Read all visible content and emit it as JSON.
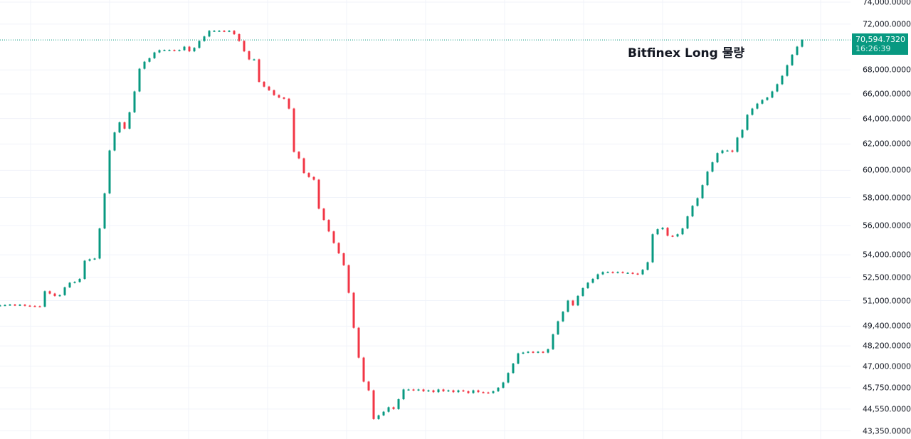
{
  "chart_data": {
    "type": "candlestick",
    "title": "",
    "annotation": "Bitfinex Long 물량",
    "y_scale": "log",
    "ylim": [
      43100,
      74300
    ],
    "grid": true,
    "y_ticks": [
      "74,000.0000",
      "72,000.0000",
      "68,000.0000",
      "66,000.0000",
      "64,000.0000",
      "62,000.0000",
      "60,000.0000",
      "58,000.0000",
      "56,000.0000",
      "54,000.0000",
      "52,500.0000",
      "51,000.0000",
      "49,400.0000",
      "48,200.0000",
      "47,000.0000",
      "45,750.0000",
      "44,550.0000",
      "43,350.0000"
    ],
    "last_price": "70,594.7320",
    "last_time": "16:26:39",
    "colors": {
      "up": "#089981",
      "down": "#f23645",
      "grid": "#f0f3fa",
      "price_line": "#089981"
    },
    "closes": [
      50700,
      50720,
      50750,
      50700,
      50740,
      50680,
      50660,
      50640,
      50620,
      51600,
      51450,
      51300,
      51350,
      51850,
      52150,
      52200,
      52400,
      53600,
      53700,
      53750,
      55800,
      58300,
      61500,
      62900,
      63700,
      63200,
      64500,
      66200,
      68100,
      68700,
      69000,
      69500,
      69700,
      69700,
      69700,
      69650,
      69700,
      70000,
      69600,
      69900,
      70500,
      70900,
      71400,
      71400,
      71400,
      71350,
      71400,
      71100,
      70500,
      69600,
      68900,
      68900,
      67000,
      66600,
      66300,
      65900,
      65700,
      65600,
      64800,
      61400,
      60900,
      59800,
      59500,
      59300,
      57200,
      56400,
      55600,
      54800,
      54100,
      53300,
      51500,
      49300,
      47500,
      46100,
      45600,
      44000,
      44200,
      44400,
      44650,
      44550,
      45100,
      45650,
      45650,
      45600,
      45650,
      45550,
      45600,
      45500,
      45650,
      45550,
      45600,
      45500,
      45600,
      45550,
      45450,
      45600,
      45500,
      45480,
      45450,
      45550,
      45750,
      46050,
      46600,
      47150,
      47750,
      47800,
      47850,
      47800,
      47850,
      47800,
      48000,
      48900,
      49700,
      50300,
      51000,
      50700,
      51300,
      51800,
      52150,
      52400,
      52700,
      52850,
      52850,
      52800,
      52850,
      52800,
      52800,
      52750,
      52700,
      53000,
      53500,
      55400,
      55750,
      55850,
      55300,
      55250,
      55400,
      55800,
      56650,
      57400,
      57950,
      58900,
      59900,
      60600,
      61300,
      61500,
      61500,
      61400,
      62500,
      63100,
      64300,
      64800,
      65200,
      65500,
      65700,
      66200,
      66800,
      67500,
      68400,
      69300,
      70000,
      70594.732
    ]
  }
}
